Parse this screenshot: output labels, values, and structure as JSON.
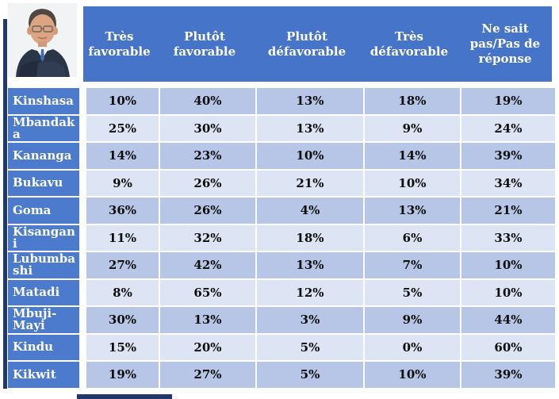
{
  "portrait": {
    "description": "Portrait photo of Francois Hollande in dark suit, white shirt and blue tie, arms crossed"
  },
  "header": {
    "columns": [
      "Très favorable",
      "Plutôt favorable",
      "Plutôt défavorable",
      "Très défavorable",
      "Ne sait pas/Pas de réponse"
    ]
  },
  "rows": [
    {
      "label": "Kinshasa",
      "values": [
        "10%",
        "40%",
        "13%",
        "18%",
        "19%"
      ]
    },
    {
      "label": "Mbandaka",
      "values": [
        "25%",
        "30%",
        "13%",
        "9%",
        "24%"
      ]
    },
    {
      "label": "Kananga",
      "values": [
        "14%",
        "23%",
        "10%",
        "14%",
        "39%"
      ]
    },
    {
      "label": "Bukavu",
      "values": [
        "9%",
        "26%",
        "21%",
        "10%",
        "34%"
      ]
    },
    {
      "label": "Goma",
      "values": [
        "36%",
        "26%",
        "4%",
        "13%",
        "21%"
      ]
    },
    {
      "label": "Kisangani",
      "values": [
        "11%",
        "32%",
        "18%",
        "6%",
        "33%"
      ]
    },
    {
      "label": "Lubumbashi",
      "values": [
        "27%",
        "42%",
        "13%",
        "7%",
        "10%"
      ]
    },
    {
      "label": "Matadi",
      "values": [
        "8%",
        "65%",
        "12%",
        "5%",
        "10%"
      ]
    },
    {
      "label": "Mbuji-Mayi",
      "values": [
        "30%",
        "13%",
        "3%",
        "9%",
        "44%"
      ]
    },
    {
      "label": "Kindu",
      "values": [
        "15%",
        "20%",
        "5%",
        "0%",
        "60%"
      ]
    },
    {
      "label": "Kikwit",
      "values": [
        "19%",
        "27%",
        "5%",
        "10%",
        "39%"
      ]
    }
  ],
  "chart_data": {
    "type": "table",
    "title": "",
    "categories": [
      "Kinshasa",
      "Mbandaka",
      "Kananga",
      "Bukavu",
      "Goma",
      "Kisangani",
      "Lubumbashi",
      "Matadi",
      "Mbuji-Mayi",
      "Kindu",
      "Kikwit"
    ],
    "columns": [
      "Très favorable",
      "Plutôt favorable",
      "Plutôt défavorable",
      "Très défavorable",
      "Ne sait pas/Pas de réponse"
    ],
    "unit": "%",
    "series": [
      {
        "name": "Très favorable",
        "values": [
          10,
          25,
          14,
          9,
          36,
          11,
          27,
          8,
          30,
          15,
          19
        ]
      },
      {
        "name": "Plutôt favorable",
        "values": [
          40,
          30,
          23,
          26,
          26,
          32,
          42,
          65,
          13,
          20,
          27
        ]
      },
      {
        "name": "Plutôt défavorable",
        "values": [
          13,
          13,
          10,
          21,
          4,
          18,
          13,
          12,
          3,
          5,
          5
        ]
      },
      {
        "name": "Très défavorable",
        "values": [
          18,
          9,
          14,
          10,
          13,
          6,
          7,
          5,
          9,
          0,
          10
        ]
      },
      {
        "name": "Ne sait pas/Pas de réponse",
        "values": [
          19,
          24,
          39,
          34,
          21,
          33,
          10,
          10,
          44,
          60,
          39
        ]
      }
    ]
  },
  "colors": {
    "header_bg": "#4674c8",
    "label_bg": "#4c7bce",
    "band_dark": "#b7c6e6",
    "band_light": "#dde4f4",
    "accent_navy": "#20386b",
    "cell_text": "#0d0d0d",
    "header_text": "#ffffff"
  }
}
